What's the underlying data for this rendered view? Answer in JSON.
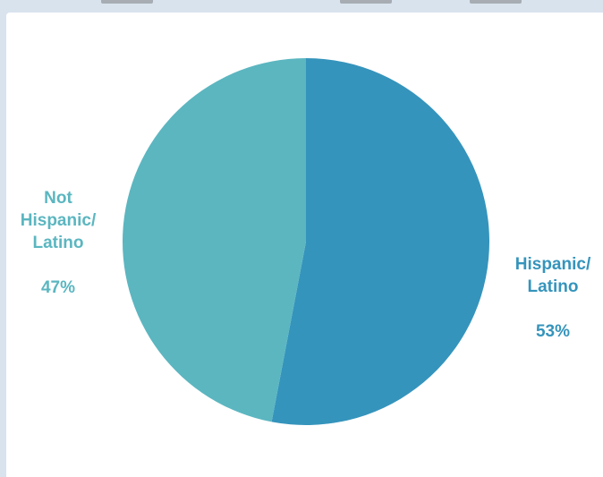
{
  "chart_data": {
    "type": "pie",
    "title": "",
    "slices": [
      {
        "label": "Hispanic/\nLatino",
        "percent_text": "53%",
        "value": 53,
        "color": "#3594bc",
        "label_color": "#3594bc"
      },
      {
        "label": "Not\nHispanic/\nLatino",
        "percent_text": "47%",
        "value": 47,
        "color": "#5bb6c0",
        "label_color": "#5bb6c0"
      }
    ],
    "start_angle_deg": 0,
    "direction": "clockwise"
  }
}
